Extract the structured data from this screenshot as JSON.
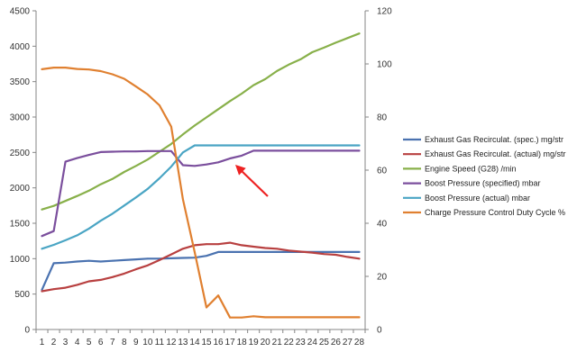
{
  "chart_data": {
    "type": "line",
    "x": [
      1,
      2,
      3,
      4,
      5,
      6,
      7,
      8,
      9,
      10,
      11,
      12,
      13,
      14,
      15,
      16,
      17,
      18,
      19,
      20,
      21,
      22,
      23,
      24,
      25,
      26,
      27,
      28
    ],
    "y_left": {
      "min": 0,
      "max": 4500,
      "ticks": [
        0,
        500,
        1000,
        1500,
        2000,
        2500,
        3000,
        3500,
        4000,
        4500
      ]
    },
    "y_right": {
      "min": 0,
      "max": 120,
      "ticks": [
        0,
        20,
        40,
        60,
        80,
        100,
        120
      ]
    },
    "grid": false,
    "legend_position": "right",
    "series": [
      {
        "name": "Exhaust Gas Recirculat. (spec.)  mg/str",
        "axis": "left",
        "color": "#4a72b0",
        "values": [
          560,
          935,
          945,
          960,
          970,
          960,
          970,
          980,
          990,
          1000,
          1000,
          1005,
          1010,
          1015,
          1040,
          1095,
          1095,
          1095,
          1095,
          1095,
          1095,
          1095,
          1095,
          1095,
          1095,
          1095,
          1095,
          1095
        ]
      },
      {
        "name": "Exhaust Gas Recirculat. (actual)  mg/str",
        "axis": "left",
        "color": "#b84040",
        "values": [
          540,
          570,
          590,
          630,
          680,
          700,
          740,
          790,
          850,
          905,
          980,
          1060,
          1140,
          1190,
          1205,
          1205,
          1225,
          1190,
          1170,
          1150,
          1140,
          1115,
          1100,
          1085,
          1065,
          1055,
          1025,
          1000
        ]
      },
      {
        "name": "Engine Speed (G28)  /min",
        "axis": "left",
        "color": "#88b04a",
        "values": [
          1695,
          1745,
          1815,
          1885,
          1960,
          2050,
          2125,
          2225,
          2310,
          2400,
          2510,
          2620,
          2755,
          2880,
          2995,
          3110,
          3225,
          3330,
          3450,
          3535,
          3650,
          3740,
          3815,
          3915,
          3980,
          4050,
          4115,
          4180
        ]
      },
      {
        "name": "Boost Pressure (specified)  mbar",
        "axis": "left",
        "color": "#7b4f9d",
        "values": [
          1320,
          1390,
          2370,
          2420,
          2465,
          2505,
          2510,
          2515,
          2515,
          2520,
          2520,
          2520,
          2320,
          2310,
          2330,
          2360,
          2415,
          2455,
          2525,
          2525,
          2525,
          2525,
          2525,
          2525,
          2525,
          2525,
          2525,
          2525
        ]
      },
      {
        "name": "Boost Pressure (actual)  mbar",
        "axis": "left",
        "color": "#4aa5c4",
        "values": [
          1140,
          1195,
          1260,
          1330,
          1425,
          1535,
          1635,
          1750,
          1865,
          1985,
          2135,
          2300,
          2500,
          2600,
          2600,
          2600,
          2600,
          2600,
          2600,
          2600,
          2600,
          2600,
          2600,
          2600,
          2600,
          2600,
          2600,
          2600
        ]
      },
      {
        "name": "Charge Pressure Control Duty Cycle  %",
        "axis": "right",
        "color": "#e08030",
        "values": [
          98,
          98.6,
          98.6,
          98.1,
          97.9,
          97.3,
          96.1,
          94.4,
          91.5,
          88.5,
          84.4,
          76.4,
          49,
          29,
          8.3,
          12.8,
          4.5,
          4.5,
          5,
          4.6,
          4.6,
          4.6,
          4.6,
          4.6,
          4.6,
          4.6,
          4.6,
          4.6
        ]
      }
    ],
    "annotations": [
      {
        "type": "arrow",
        "color": "#ee2222"
      }
    ]
  }
}
